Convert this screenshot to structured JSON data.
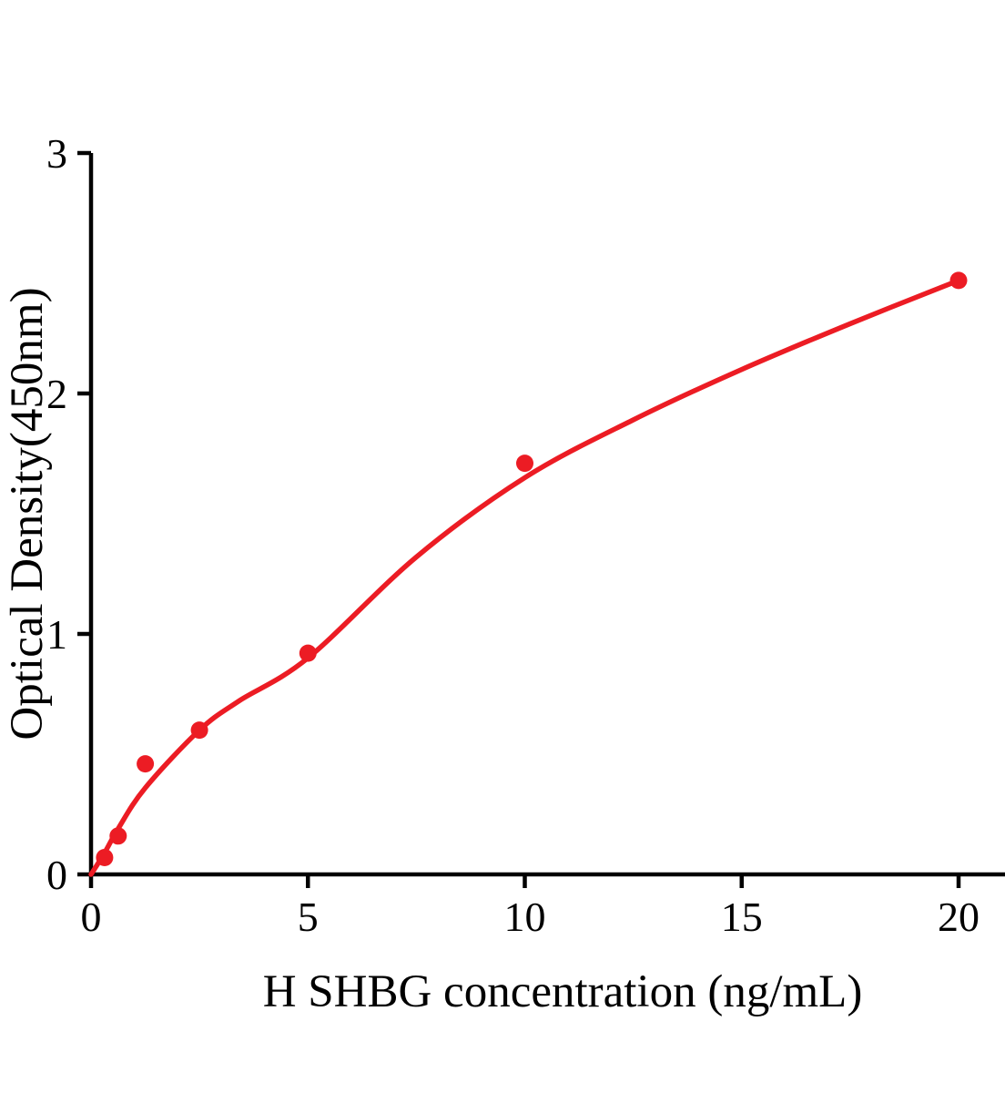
{
  "chart_data": {
    "type": "scatter",
    "title": "",
    "xlabel": "H SHBG concentration (ng/mL)",
    "ylabel": "Optical Density(450nm)",
    "xlim": [
      0,
      21.1
    ],
    "ylim": [
      0,
      3
    ],
    "xticks": [
      0,
      5,
      10,
      15,
      20
    ],
    "yticks": [
      0,
      1,
      2,
      3
    ],
    "grid": false,
    "legend": false,
    "axis_color": "#000000",
    "accent_color": "#EC1C24",
    "series": [
      {
        "name": "standard-points",
        "type": "scatter",
        "color": "#EC1C24",
        "x": [
          0.313,
          0.625,
          1.25,
          2.5,
          5,
          10,
          20
        ],
        "y": [
          0.07,
          0.16,
          0.46,
          0.6,
          0.92,
          1.71,
          2.47
        ]
      },
      {
        "name": "fit-curve",
        "type": "line",
        "color": "#EC1C24",
        "x": [
          0,
          0.313,
          0.625,
          1.25,
          2.5,
          3.4,
          5,
          7.5,
          10,
          12.5,
          15,
          17.5,
          20
        ],
        "y": [
          0,
          0.09,
          0.19,
          0.36,
          0.6,
          0.72,
          0.9,
          1.32,
          1.65,
          1.89,
          2.1,
          2.29,
          2.47
        ]
      }
    ]
  }
}
